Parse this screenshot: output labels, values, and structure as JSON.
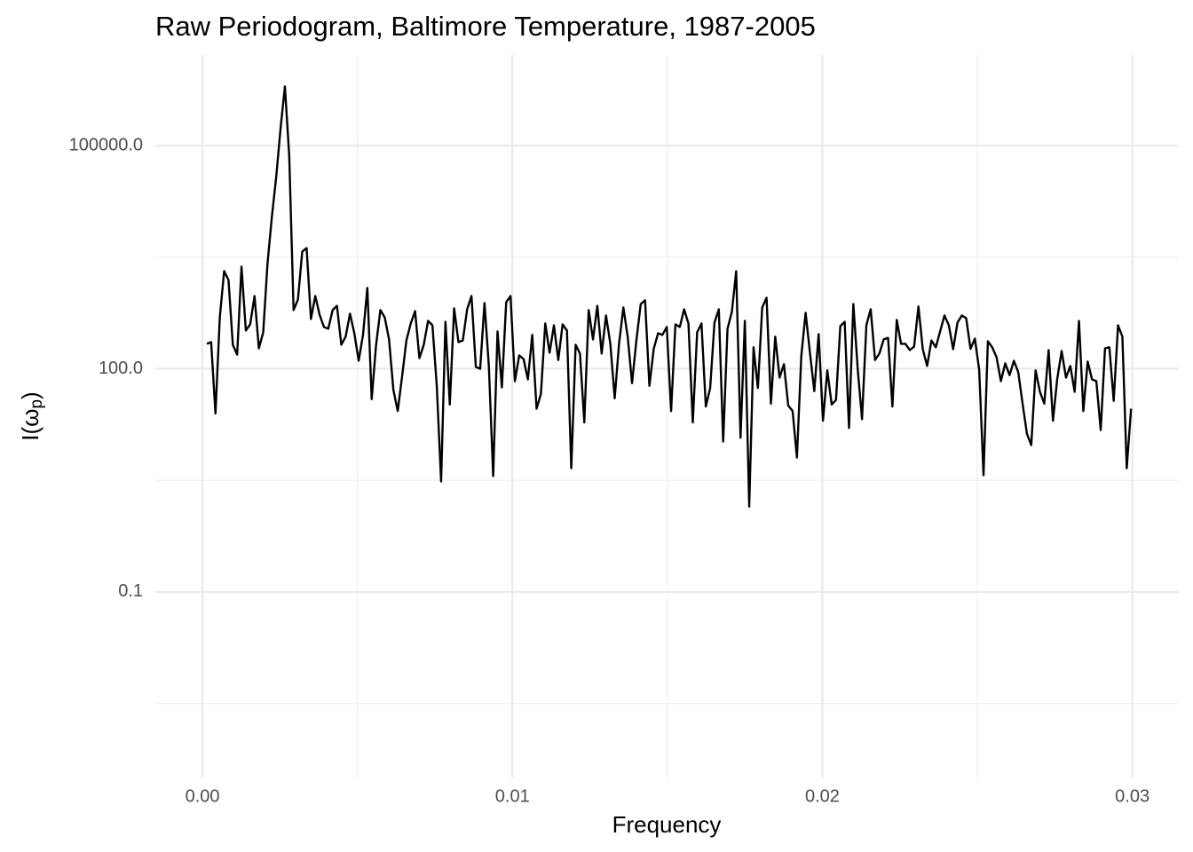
{
  "chart_data": {
    "type": "line",
    "title": "Raw Periodogram, Baltimore Temperature, 1987-2005",
    "xlabel": "Frequency",
    "ylabel": [
      "I(ω",
      "p",
      ")"
    ],
    "color": "#000000",
    "log_y": true,
    "grid": true,
    "xlim": [
      -0.00152,
      0.0315
    ],
    "xticks": [
      {
        "value": 0,
        "label": "0.00"
      },
      0.01,
      0.02,
      0.03
    ],
    "ylim": [
      0.00032,
      1650000
    ],
    "yticks": [
      {
        "value": 0.1,
        "label": "0.1"
      },
      {
        "value": 100,
        "label": "100.0"
      },
      {
        "value": 100000,
        "label": "100000.0"
      }
    ],
    "x": [
      0.00014,
      0.00028,
      0.00042,
      0.00056,
      0.0007,
      0.00084,
      0.00098,
      0.00112,
      0.00126,
      0.0014,
      0.00154,
      0.00168,
      0.00182,
      0.00196,
      0.0021,
      0.00224,
      0.00238,
      0.00252,
      0.00266,
      0.0028,
      0.00294,
      0.00308,
      0.00322,
      0.00336,
      0.0035,
      0.00364,
      0.00378,
      0.00392,
      0.00406,
      0.0042,
      0.00434,
      0.00448,
      0.00462,
      0.00476,
      0.0049,
      0.00504,
      0.00518,
      0.00532,
      0.00546,
      0.0056,
      0.00574,
      0.00588,
      0.00602,
      0.00616,
      0.0063,
      0.00644,
      0.00658,
      0.00672,
      0.00686,
      0.007,
      0.00714,
      0.00728,
      0.00742,
      0.00756,
      0.0077,
      0.00784,
      0.00798,
      0.00812,
      0.00826,
      0.0084,
      0.00854,
      0.00868,
      0.00882,
      0.00896,
      0.0091,
      0.00924,
      0.00938,
      0.00952,
      0.00966,
      0.0098,
      0.00994,
      0.01008,
      0.01022,
      0.01036,
      0.0105,
      0.01064,
      0.01078,
      0.01092,
      0.01106,
      0.0112,
      0.01134,
      0.01148,
      0.01162,
      0.01176,
      0.0119,
      0.01204,
      0.01218,
      0.01232,
      0.01246,
      0.0126,
      0.01274,
      0.01288,
      0.01302,
      0.01316,
      0.0133,
      0.01344,
      0.01358,
      0.01372,
      0.01386,
      0.014,
      0.01414,
      0.01428,
      0.01442,
      0.01456,
      0.0147,
      0.01484,
      0.01498,
      0.01512,
      0.01526,
      0.0154,
      0.01554,
      0.01568,
      0.01582,
      0.01596,
      0.0161,
      0.01624,
      0.01638,
      0.01652,
      0.01666,
      0.0168,
      0.01694,
      0.01708,
      0.01722,
      0.01736,
      0.0175,
      0.01764,
      0.01778,
      0.01792,
      0.01806,
      0.0182,
      0.01834,
      0.01848,
      0.01862,
      0.01876,
      0.0189,
      0.01904,
      0.01918,
      0.01932,
      0.01946,
      0.0196,
      0.01974,
      0.01988,
      0.02002,
      0.02016,
      0.0203,
      0.02044,
      0.02058,
      0.02072,
      0.02086,
      0.021,
      0.02114,
      0.02128,
      0.02142,
      0.02156,
      0.0217,
      0.02184,
      0.02198,
      0.02212,
      0.02226,
      0.0224,
      0.02254,
      0.02268,
      0.02282,
      0.02296,
      0.0231,
      0.02324,
      0.02338,
      0.02352,
      0.02366,
      0.0238,
      0.02394,
      0.02408,
      0.02422,
      0.02436,
      0.0245,
      0.02464,
      0.02478,
      0.02492,
      0.02506,
      0.0252,
      0.02534,
      0.02548,
      0.02562,
      0.02576,
      0.0259,
      0.02604,
      0.02618,
      0.02632,
      0.02646,
      0.0266,
      0.02674,
      0.02688,
      0.02702,
      0.02716,
      0.0273,
      0.02744,
      0.02758,
      0.02772,
      0.02786,
      0.028,
      0.02814,
      0.02828,
      0.02842,
      0.02856,
      0.0287,
      0.02884,
      0.02898,
      0.02912,
      0.02926,
      0.0294,
      0.02954,
      0.02968,
      0.02982,
      0.02996
    ],
    "values": [
      216,
      228,
      25,
      492,
      2056,
      1560,
      210,
      155,
      2355,
      326,
      395,
      950,
      188,
      308,
      2630,
      11000,
      38000,
      170000,
      624000,
      72500,
      614,
      850,
      3760,
      4190,
      466,
      950,
      530,
      364,
      345,
      614,
      700,
      210,
      270,
      550,
      300,
      128,
      285,
      1220,
      39,
      205,
      614,
      492,
      248,
      52,
      27,
      78,
      240,
      406,
      595,
      139,
      210,
      440,
      384,
      59,
      3.05,
      428,
      33,
      648,
      228,
      240,
      630,
      950,
      106,
      100,
      763,
      109,
      3.6,
      317,
      56,
      785,
      950,
      68,
      151,
      135,
      72,
      285,
      29,
      46,
      406,
      164,
      384,
      131,
      395,
      326,
      4.6,
      210,
      160,
      19,
      614,
      248,
      700,
      160,
      520,
      216,
      40,
      216,
      666,
      270,
      64,
      240,
      740,
      830,
      59,
      185,
      300,
      285,
      364,
      27,
      395,
      364,
      630,
      406,
      19,
      308,
      406,
      31,
      55,
      417,
      630,
      10.5,
      345,
      580,
      2050,
      11.8,
      440,
      1.4,
      194,
      55,
      666,
      900,
      34,
      270,
      76,
      115,
      32,
      27,
      6.4,
      147,
      565,
      164,
      50,
      292,
      20,
      95,
      33,
      38,
      374,
      428,
      16,
      740,
      100,
      21,
      384,
      630,
      131,
      160,
      248,
      260,
      31,
      454,
      216,
      216,
      178,
      198,
      686,
      183,
      109,
      240,
      194,
      317,
      520,
      384,
      183,
      417,
      520,
      478,
      185,
      254,
      97,
      3.7,
      234,
      194,
      143,
      68,
      118,
      82,
      128,
      90,
      34,
      13.4,
      9.4,
      95,
      49,
      34,
      178,
      20,
      74,
      173,
      76,
      109,
      49,
      440,
      27,
      125,
      72,
      68,
      15,
      188,
      194,
      37,
      384,
      270,
      4.6,
      29
    ]
  }
}
